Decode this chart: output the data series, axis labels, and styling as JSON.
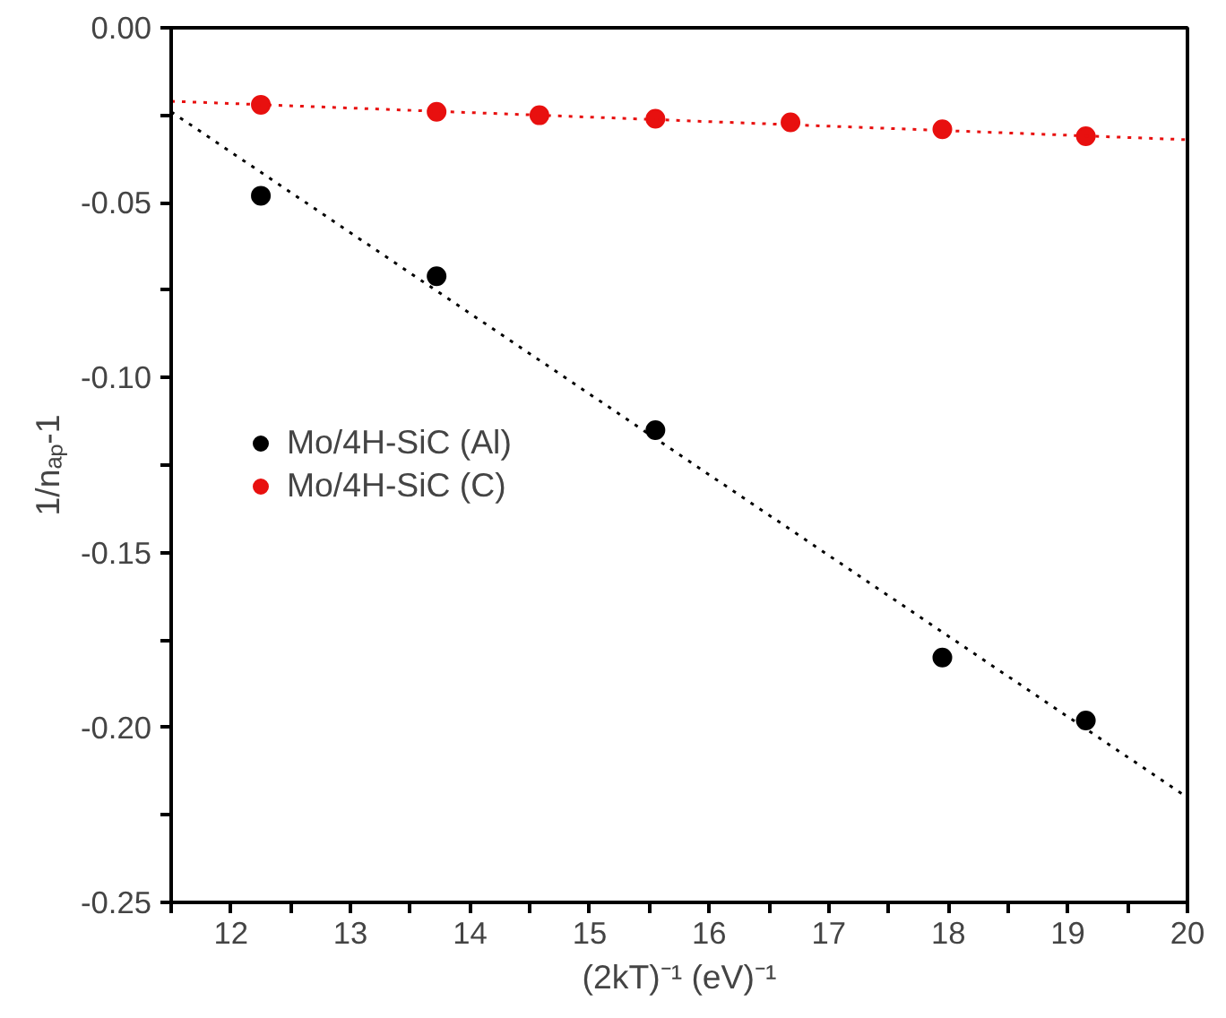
{
  "chart_data": {
    "type": "scatter",
    "xlabel": "(2kT)⁻¹ (eV)⁻¹",
    "ylabel": "1/nₐₚ-1",
    "xlim": [
      11.5,
      20
    ],
    "ylim": [
      -0.25,
      0.0
    ],
    "xticks": [
      {
        "value": 11.5,
        "label": null
      },
      12,
      {
        "value": 12.5,
        "label": null
      },
      13,
      {
        "value": 13.5,
        "label": null
      },
      14,
      {
        "value": 14.5,
        "label": null
      },
      15,
      {
        "value": 15.5,
        "label": null
      },
      16,
      {
        "value": 16.5,
        "label": null
      },
      17,
      {
        "value": 17.5,
        "label": null
      },
      18,
      {
        "value": 18.5,
        "label": null
      },
      19,
      {
        "value": 19.5,
        "label": null
      },
      20
    ],
    "yticks": [
      {
        "value": -0.25,
        "label": "-0.25"
      },
      {
        "value": -0.225,
        "label": null
      },
      {
        "value": -0.2,
        "label": "-0.20"
      },
      {
        "value": -0.175,
        "label": null
      },
      {
        "value": -0.15,
        "label": "-0.15"
      },
      {
        "value": -0.125,
        "label": null
      },
      {
        "value": -0.1,
        "label": "-0.10"
      },
      {
        "value": -0.075,
        "label": null
      },
      {
        "value": -0.05,
        "label": "-0.05"
      },
      {
        "value": -0.025,
        "label": null
      },
      {
        "value": 0.0,
        "label": "0.00"
      }
    ],
    "grid": false,
    "legend": "left",
    "marker": "circle",
    "series": [
      {
        "name": "Mo/4H-SiC (Al)",
        "color": "#000000",
        "x": [
          12.25,
          13.72,
          15.55,
          17.95,
          19.15
        ],
        "values": [
          -0.048,
          -0.071,
          -0.115,
          -0.18,
          -0.198
        ]
      },
      {
        "name": "Mo/4H-SiC (C)",
        "color": "#e8100f",
        "x": [
          12.25,
          13.72,
          14.58,
          15.55,
          16.68,
          17.95,
          19.15
        ],
        "values": [
          -0.022,
          -0.024,
          -0.025,
          -0.026,
          -0.027,
          -0.029,
          -0.031
        ]
      },
      {
        "type": "line",
        "color": "#000000",
        "line_style": "dotted",
        "marker": "none",
        "x": [
          11.5,
          20
        ],
        "values": [
          -0.024,
          -0.22
        ]
      },
      {
        "type": "line",
        "color": "#e8100f",
        "line_style": "dotted",
        "marker": "none",
        "x": [
          11.5,
          20
        ],
        "values": [
          -0.021,
          -0.032
        ]
      }
    ]
  }
}
